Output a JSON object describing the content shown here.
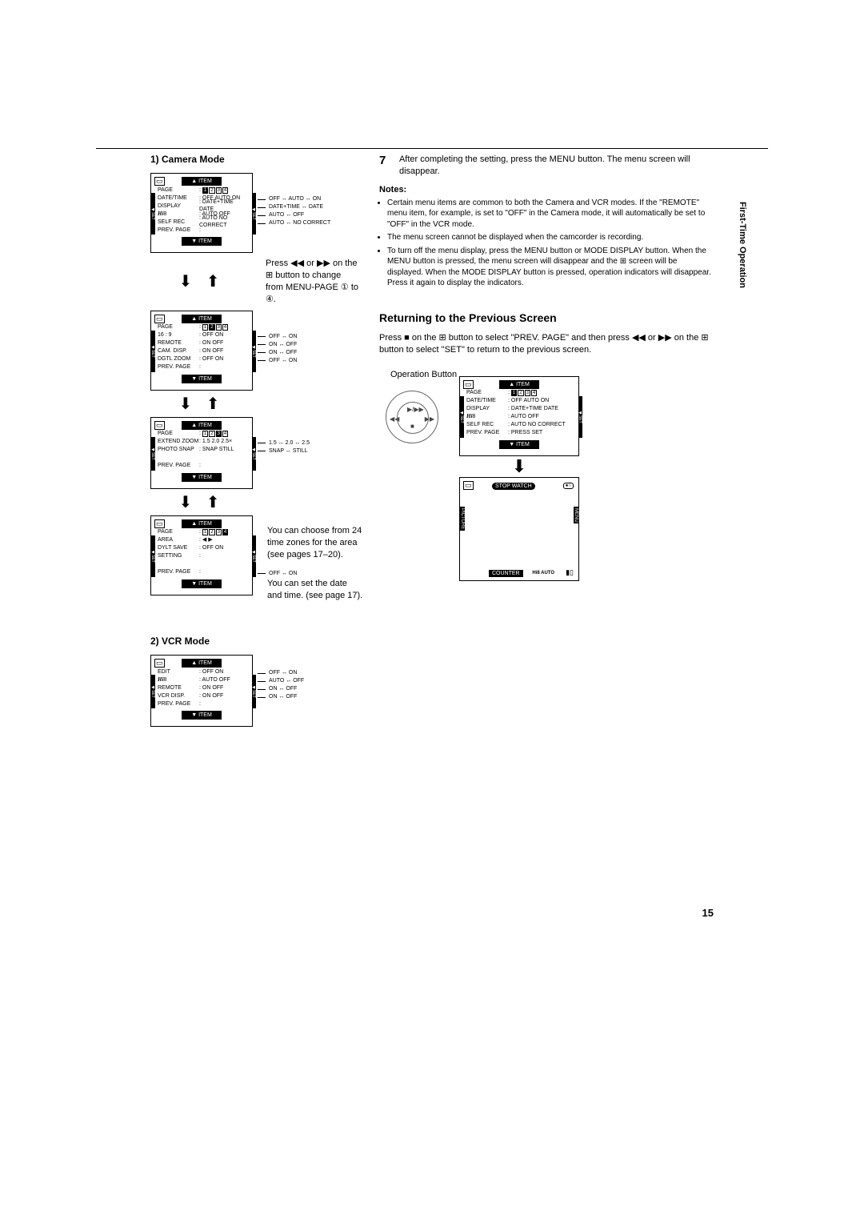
{
  "sideTab": "First-Time\nOperation",
  "pageNumber": "15",
  "cameraMode": {
    "title": "1) Camera Mode",
    "menus": [
      {
        "rows": [
          {
            "label": "PAGE",
            "val": "",
            "nums": [
              1,
              2,
              3,
              4
            ],
            "active": 1,
            "opt": ""
          },
          {
            "label": "DATE/TIME",
            "val": ": OFF  AUTO  ON",
            "opt": "OFF ↔ AUTO ↔ ON"
          },
          {
            "label": "DISPLAY",
            "val": ": DATE+TIME DATE",
            "opt": "DATE+TIME ↔ DATE"
          },
          {
            "label": "Hi8",
            "val": ": AUTO        OFF",
            "opt": "AUTO ↔ OFF",
            "hi8": true
          },
          {
            "label": "SELF REC",
            "val": ": AUTO NO CORRECT",
            "opt": "AUTO ↔ NO CORRECT"
          },
          {
            "label": "PREV. PAGE",
            "val": ":",
            "opt": ""
          }
        ],
        "sideInstr": "Press ◀◀ or ▶▶ on the ⊞ button to change from MENU-PAGE ① to ④."
      },
      {
        "rows": [
          {
            "label": "PAGE",
            "val": "",
            "nums": [
              1,
              2,
              3,
              4
            ],
            "active": 2,
            "opt": ""
          },
          {
            "label": "16 : 9",
            "val": ": OFF          ON",
            "opt": "OFF ↔ ON"
          },
          {
            "label": "REMOTE",
            "val": ": ON          OFF",
            "opt": "ON ↔ OFF"
          },
          {
            "label": "CAM. DISP.",
            "val": ": ON          OFF",
            "opt": "ON ↔ OFF"
          },
          {
            "label": "DGTL ZOOM",
            "val": ": OFF          ON",
            "opt": "OFF ↔ ON"
          },
          {
            "label": "PREV. PAGE",
            "val": ":",
            "opt": ""
          }
        ]
      },
      {
        "rows": [
          {
            "label": "PAGE",
            "val": "",
            "nums": [
              1,
              2,
              3,
              4
            ],
            "active": 3,
            "opt": ""
          },
          {
            "label": "EXTEND ZOOM",
            "val": ": 1.5  2.0  2.5×",
            "opt": "1.5 ↔ 2.0 ↔ 2.5"
          },
          {
            "label": "PHOTO SNAP",
            "val": ": SNAP    STILL",
            "opt": "SNAP ↔ STILL"
          },
          {
            "label": "",
            "val": "",
            "opt": ""
          },
          {
            "label": "PREV. PAGE",
            "val": ":",
            "opt": ""
          }
        ]
      },
      {
        "rows": [
          {
            "label": "PAGE",
            "val": "",
            "nums": [
              1,
              2,
              3,
              4
            ],
            "active": 4,
            "opt": ""
          },
          {
            "label": "AREA",
            "val": ":    ◀            ▶",
            "opt": ""
          },
          {
            "label": "DYLT SAVE",
            "val": ": OFF          ON",
            "opt": ""
          },
          {
            "label": "SETTING",
            "val": ":",
            "opt": ""
          },
          {
            "label": "",
            "val": "",
            "opt": ""
          },
          {
            "label": "PREV. PAGE",
            "val": ":",
            "opt": "OFF ↔ ON"
          }
        ],
        "sideInstr1": "You can choose from 24 time zones for the area (see pages 17–20).",
        "sideInstr2": "You can set the date and time. (see page 17)."
      }
    ],
    "itemLabelTop": "▲ ITEM",
    "itemLabelBot": "▼ ITEM"
  },
  "vcrMode": {
    "title": "2) VCR Mode",
    "rows": [
      {
        "label": "EDIT",
        "val": ": OFF          ON",
        "opt": "OFF ↔ ON"
      },
      {
        "label": "Hi8",
        "val": ": AUTO       OFF",
        "opt": "AUTO ↔ OFF",
        "hi8": true
      },
      {
        "label": "REMOTE",
        "val": ": ON          OFF",
        "opt": "ON ↔ OFF"
      },
      {
        "label": "VCR DISP.",
        "val": ": ON          OFF",
        "opt": "ON ↔ OFF"
      },
      {
        "label": "PREV. PAGE",
        "val": ":",
        "opt": ""
      }
    ]
  },
  "step7": {
    "num": "7",
    "text": "After completing the setting, press the MENU button. The menu screen will disappear."
  },
  "notesTitle": "Notes:",
  "notes": [
    "Certain menu items are common to both the Camera and VCR modes. If the \"REMOTE\" menu item, for example, is set to \"OFF\" in the Camera mode, it will automatically be set to \"OFF\" in the VCR mode.",
    "The menu screen cannot be displayed when the camcorder is recording.",
    "To turn off the menu display, press the MENU button or MODE DISPLAY button. When the MENU button is pressed, the menu screen will disappear and the ⊞ screen will be displayed. When the MODE DISPLAY button is pressed, operation indicators will disappear. Press it again to display the indicators."
  ],
  "returning": {
    "title": "Returning to the Previous Screen",
    "text": "Press ■ on the ⊞ button to select \"PREV. PAGE\" and then press ◀◀ or ▶▶ on the ⊞ button to select \"SET\" to return to the previous screen.",
    "opLabel": "Operation Button",
    "menu": {
      "rows": [
        {
          "label": "PAGE",
          "val": "",
          "nums": [
            1,
            2,
            3,
            4
          ],
          "active": 1
        },
        {
          "label": "DATE/TIME",
          "val": ": OFF  AUTO  ON"
        },
        {
          "label": "DISPLAY",
          "val": ": DATE+TIME DATE"
        },
        {
          "label": "Hi8",
          "val": ": AUTO        OFF",
          "hi8": true
        },
        {
          "label": "SELF REC",
          "val": ": AUTO NO CORRECT"
        },
        {
          "label": "PREV. PAGE",
          "val": ": PRESS SET"
        }
      ]
    },
    "stopwatch": "STOP WATCH",
    "counter": "COUNTER",
    "hi8auto": "Hi8 AUTO",
    "picture": "PICTURE",
    "menu2": "MENU"
  }
}
